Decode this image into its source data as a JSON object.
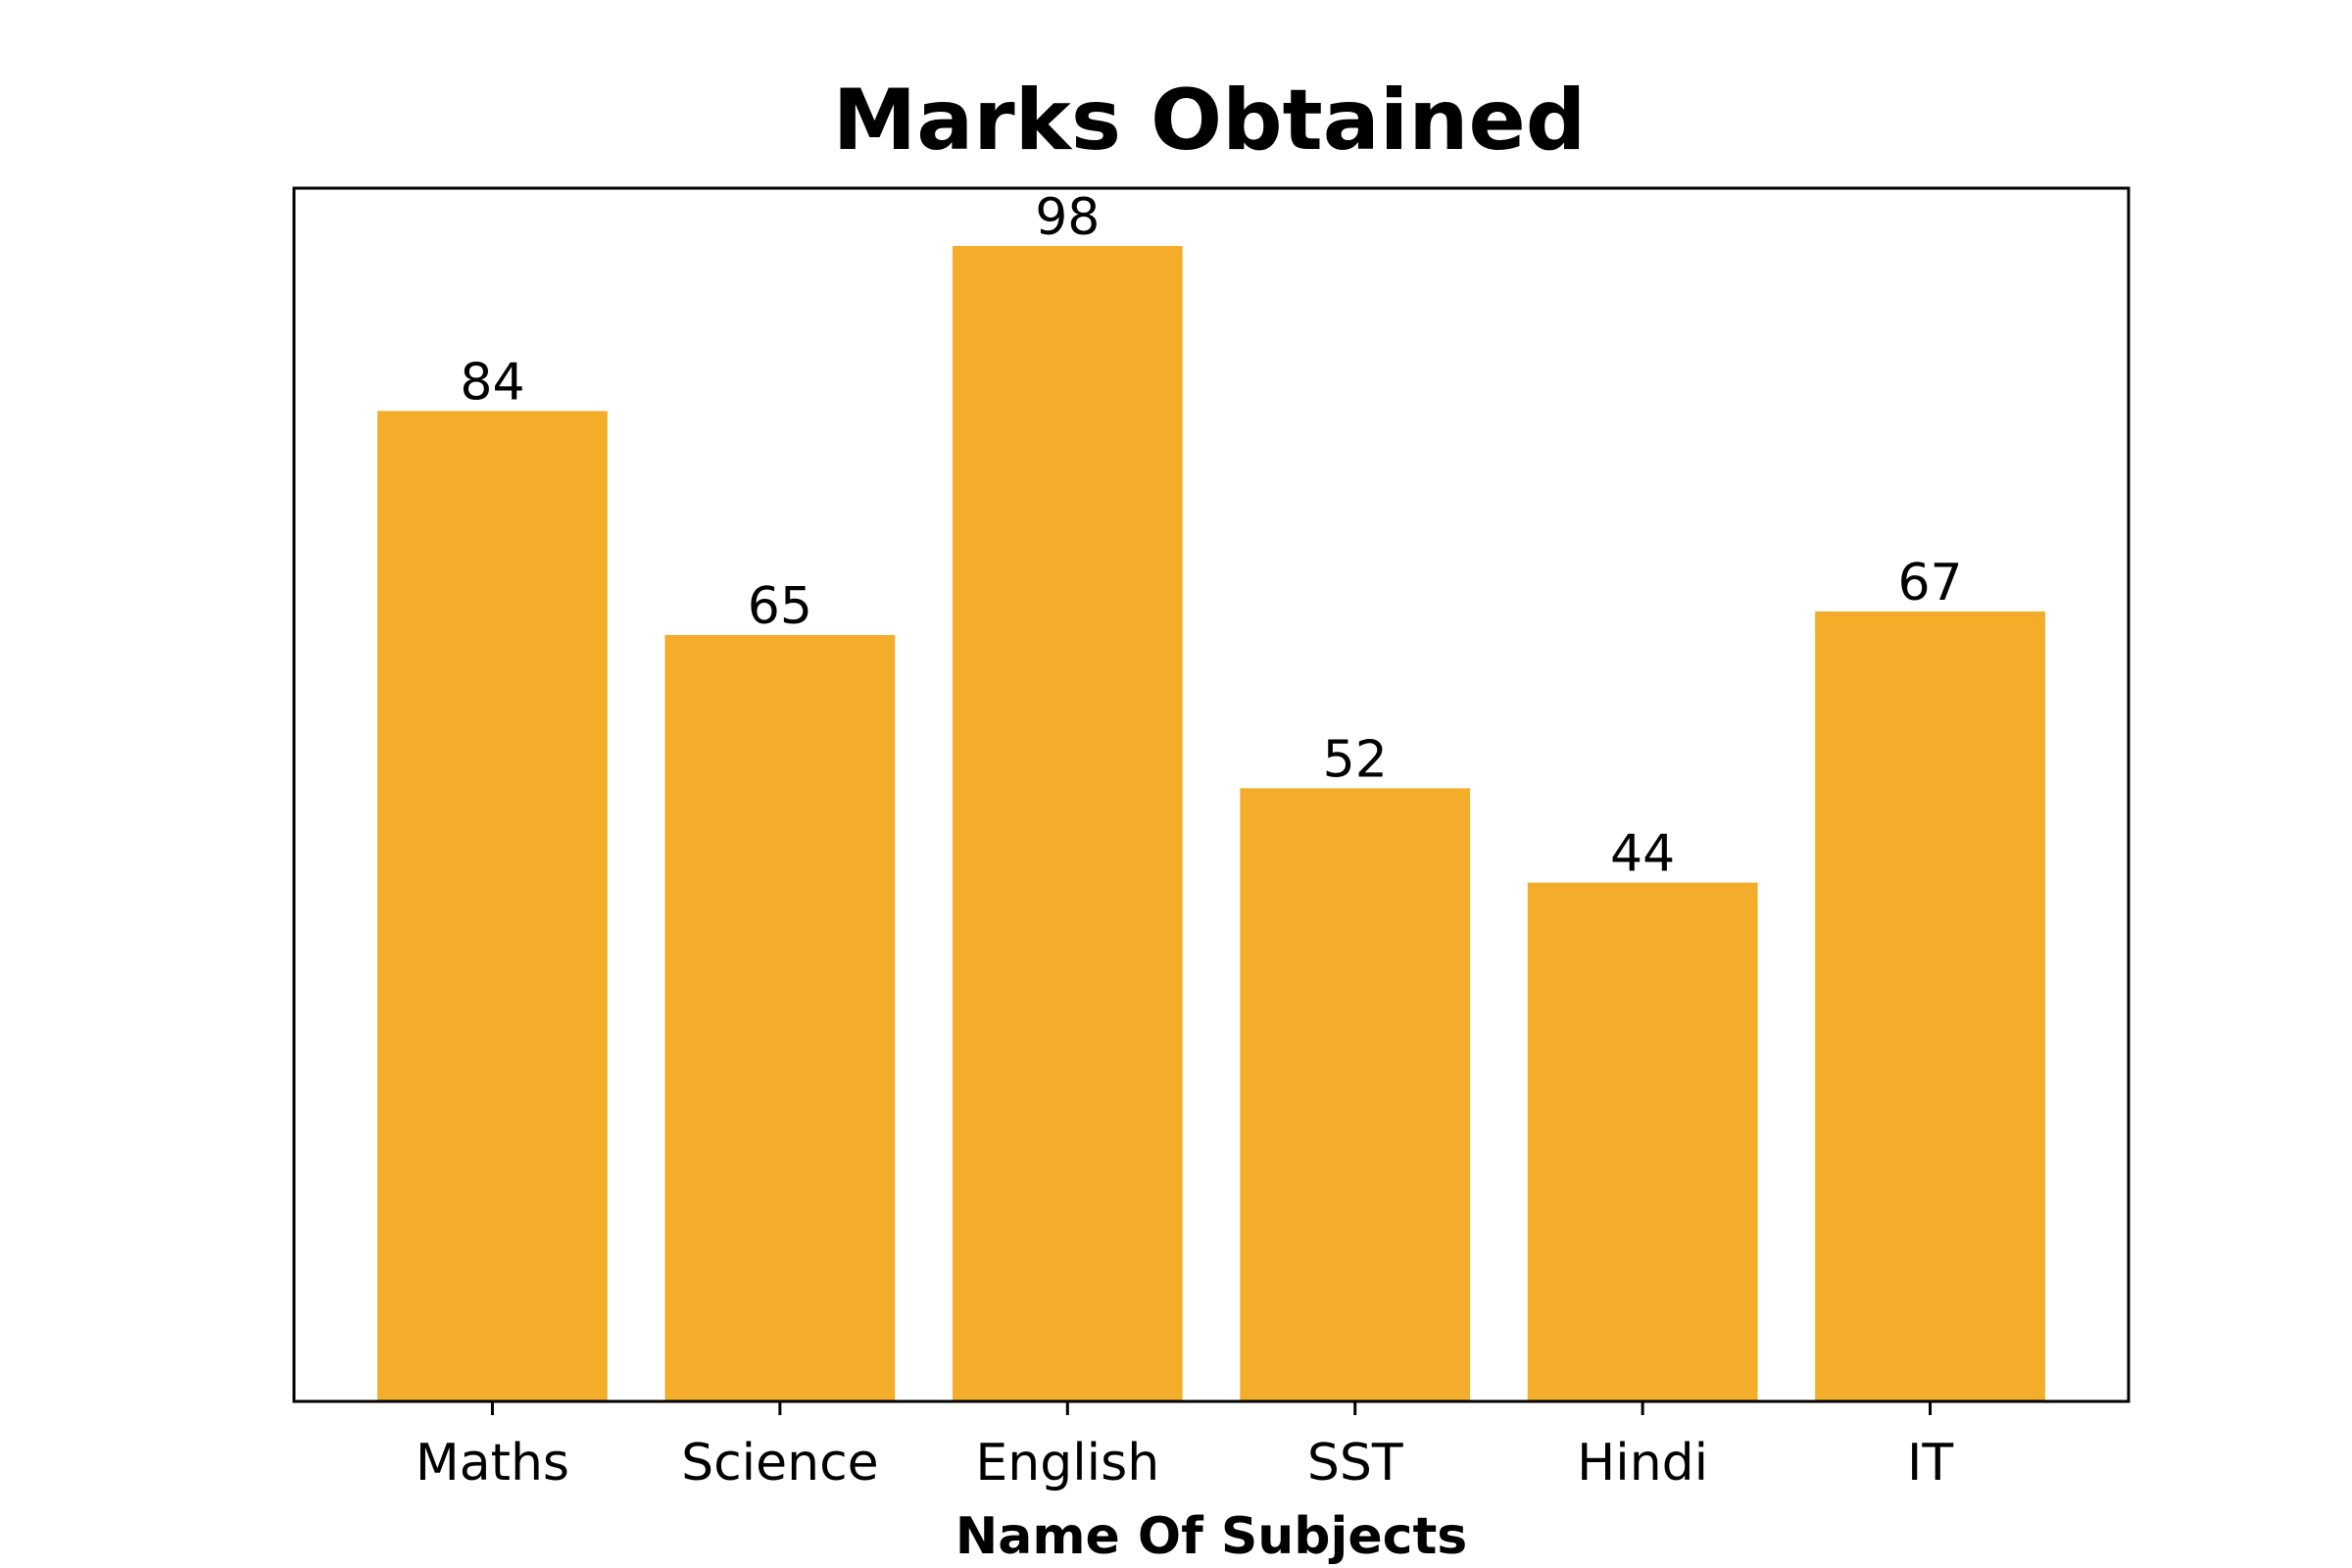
{
  "chart_data": {
    "type": "bar",
    "title": "Marks Obtained",
    "xlabel": "Name Of Subjects",
    "ylabel": "",
    "categories": [
      "Maths",
      "Science",
      "English",
      "SST",
      "Hindi",
      "IT"
    ],
    "values": [
      84,
      65,
      98,
      52,
      44,
      67
    ],
    "data_labels": [
      "84",
      "65",
      "98",
      "52",
      "44",
      "67"
    ],
    "ylim": [
      0,
      102.9
    ],
    "grid": false,
    "bar_color": "#F4AD2A",
    "show_y_axis": false
  }
}
